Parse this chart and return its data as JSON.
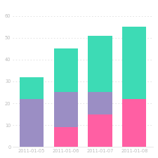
{
  "categories": [
    "2011-01-05",
    "2011-01-06",
    "2011-01-07",
    "2011-01-08"
  ],
  "series": [
    {
      "name": "pink",
      "color": "#FF5FA3",
      "values": [
        0,
        9,
        15,
        22
      ]
    },
    {
      "name": "purple",
      "color": "#9B8EC4",
      "values": [
        22,
        16,
        10,
        0
      ]
    },
    {
      "name": "teal",
      "color": "#3DDBB5",
      "values": [
        10,
        20,
        26,
        33
      ]
    }
  ],
  "ylim": [
    0,
    65
  ],
  "yticks": [
    0,
    10,
    20,
    30,
    40,
    50,
    60
  ],
  "background_color": "#FFFFFF",
  "grid_color": "#DDDDDD",
  "bar_width": 0.7,
  "tick_fontsize": 4.8,
  "tick_color": "#BBBBBB",
  "figsize": [
    2.25,
    2.25
  ],
  "dpi": 100
}
